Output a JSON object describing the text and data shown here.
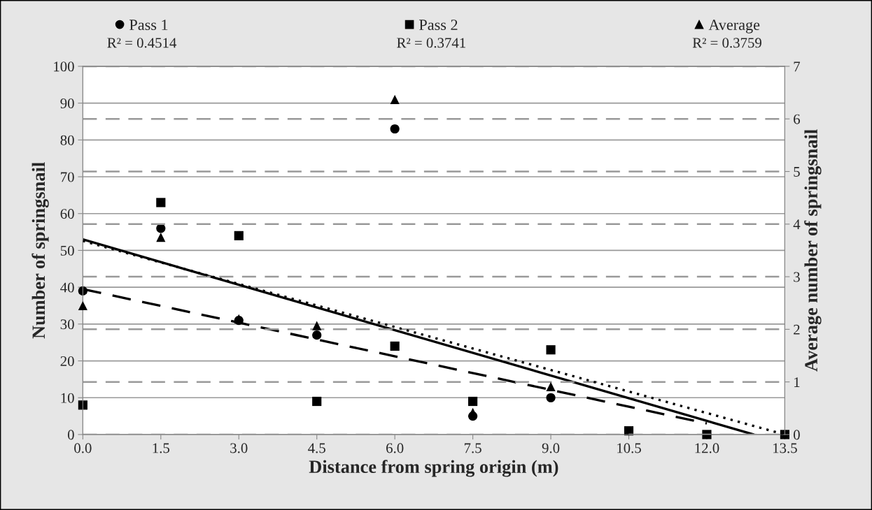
{
  "chart_data": {
    "type": "scatter",
    "xlabel": "Distance from spring origin (m)",
    "ylabel": "Number of springsnail",
    "y2label": "Average number of springsnail",
    "xlim": [
      0,
      13.5
    ],
    "xticks": [
      {
        "value": 0,
        "label": "0.0"
      },
      {
        "value": 1.5,
        "label": "1.5"
      },
      {
        "value": 3,
        "label": "3.0"
      },
      {
        "value": 4.5,
        "label": "4.5"
      },
      {
        "value": 6,
        "label": "6.0"
      },
      {
        "value": 7.5,
        "label": "7.5"
      },
      {
        "value": 9,
        "label": "9.0"
      },
      {
        "value": 10.5,
        "label": "10.5"
      },
      {
        "value": 12,
        "label": "12.0"
      },
      {
        "value": 13.5,
        "label": "13.5"
      }
    ],
    "ylim": [
      0,
      100
    ],
    "yticks": [
      0,
      10,
      20,
      30,
      40,
      50,
      60,
      70,
      80,
      90,
      100
    ],
    "y2lim": [
      0,
      7
    ],
    "y2ticks": [
      0,
      1,
      2,
      3,
      4,
      5,
      6,
      7
    ],
    "x": [
      0,
      1.5,
      3,
      4.5,
      6,
      7.5,
      9,
      10.5,
      12,
      13.5
    ],
    "grid": "y",
    "legend": "top",
    "series": [
      {
        "name": "Pass 1",
        "marker": "circle",
        "color": "#000000",
        "values": [
          39,
          56,
          31,
          27,
          83,
          5,
          10,
          null,
          null,
          null
        ]
      },
      {
        "name": "Pass 2",
        "marker": "square",
        "color": "#000000",
        "values": [
          8,
          63,
          54,
          9,
          24,
          9,
          23,
          1,
          0,
          0
        ]
      },
      {
        "name": "Average",
        "marker": "triangle",
        "color": "#000000",
        "axis": "y2",
        "values": [
          2.45,
          3.75,
          2.2,
          2.07,
          6.37,
          0.42,
          0.91,
          null,
          null,
          null
        ]
      },
      {
        "type": "line",
        "line_style": "dashed",
        "color": "#000000",
        "x": [
          0,
          12
        ],
        "values": [
          39.5,
          3
        ]
      },
      {
        "type": "line",
        "line_style": "solid",
        "color": "#000000",
        "x": [
          0,
          12.9
        ],
        "values": [
          53,
          0
        ]
      },
      {
        "type": "line",
        "line_style": "dotted",
        "color": "#000000",
        "axis": "y2",
        "x": [
          0,
          13.5
        ],
        "values": [
          3.68,
          0
        ]
      }
    ],
    "annotations": [
      "R² = 0.4514",
      "R² = 0.3741",
      "R² = 0.3759"
    ]
  }
}
